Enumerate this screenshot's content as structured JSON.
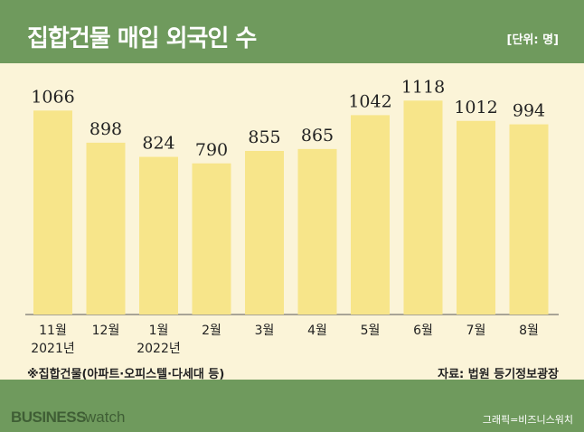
{
  "title": "집합건물 매입 외국인 수",
  "unit": "[단위: 명]",
  "note": "※집합건물(아파트·오피스텔·다세대 등)",
  "source": "자료: 법원 등기정보광장",
  "brand": {
    "business": "BUSINESS",
    "watch": "watch"
  },
  "credit": "그래픽=비즈니스워치",
  "colors": {
    "background": "#6f9a5d",
    "panel": "#fbf4d8",
    "bar": "#f7e58a"
  },
  "chart_data": {
    "type": "bar",
    "title": "집합건물 매입 외국인 수",
    "ylabel": "",
    "xlabel": "",
    "categories": [
      [
        "11월",
        "2021년"
      ],
      [
        "12월"
      ],
      [
        "1월",
        "2022년"
      ],
      [
        "2월"
      ],
      [
        "3월"
      ],
      [
        "4월"
      ],
      [
        "5월"
      ],
      [
        "6월"
      ],
      [
        "7월"
      ],
      [
        "8월"
      ]
    ],
    "values": [
      1066,
      898,
      824,
      790,
      855,
      865,
      1042,
      1118,
      1012,
      994
    ],
    "ylim": [
      0,
      1300
    ],
    "grid": false,
    "legend": "none"
  }
}
